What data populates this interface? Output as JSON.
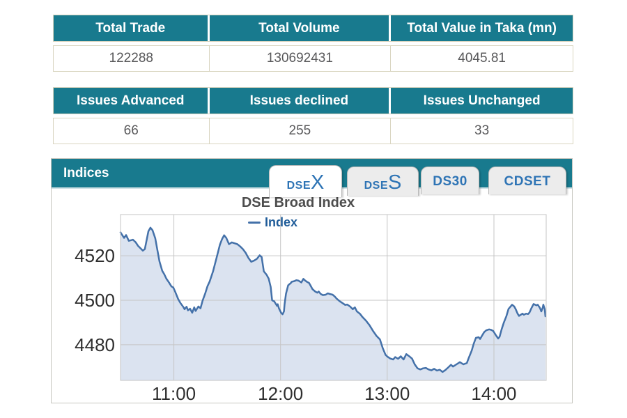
{
  "colors": {
    "teal_header": "#187A8E",
    "tab_text_blue": "#2E74B5",
    "table_border_beige": "#D9D5C0",
    "value_text": "#58585A",
    "series_line": "#4471A9",
    "series_fill": "#DBE3F0",
    "gridline": "#C5C5C5",
    "axis_label": "#2E2E2E",
    "chart_title_gray": "#4D4D4D",
    "legend_text": "#1F5C99"
  },
  "summary_table": {
    "headers": [
      "Total Trade",
      "Total Volume",
      "Total Value in Taka (mn)"
    ],
    "values": [
      "122288",
      "130692431",
      "4045.81"
    ]
  },
  "issues_table": {
    "headers": [
      "Issues Advanced",
      "Issues declined",
      "Issues Unchanged"
    ],
    "values": [
      "66",
      "255",
      "33"
    ]
  },
  "indices_panel": {
    "title": "Indices",
    "tabs": [
      {
        "label": "DSEX",
        "prefix": "DSE",
        "suffix": "X",
        "active": true
      },
      {
        "label": "DSES",
        "prefix": "DSE",
        "suffix": "S",
        "active": false
      },
      {
        "label": "DS30",
        "prefix": "DS30",
        "suffix": "",
        "active": false
      },
      {
        "label": "CDSET",
        "prefix": "CDSET",
        "suffix": "",
        "active": false
      }
    ]
  },
  "chart_data": {
    "type": "area",
    "title": "DSE Broad Index",
    "xlabel": "",
    "ylabel": "",
    "legend_position": "top-center",
    "grid": true,
    "xlim": [
      10.5,
      14.49
    ],
    "ylim": [
      4464,
      4538.5
    ],
    "xticks": [
      {
        "value": 11,
        "label": "11:00"
      },
      {
        "value": 12,
        "label": "12:00"
      },
      {
        "value": 13,
        "label": "13:00"
      },
      {
        "value": 14,
        "label": "14:00"
      }
    ],
    "yticks": [
      {
        "value": 4480,
        "label": "4480"
      },
      {
        "value": 4500,
        "label": "4500"
      },
      {
        "value": 4520,
        "label": "4520"
      }
    ],
    "series": [
      {
        "name": "Index",
        "color": "#4471A9",
        "fill": "#DBE3F0",
        "points": [
          [
            10.5,
            4530.5
          ],
          [
            10.533,
            4528.0
          ],
          [
            10.552,
            4529.3
          ],
          [
            10.578,
            4526.7
          ],
          [
            10.617,
            4527.2
          ],
          [
            10.643,
            4526.0
          ],
          [
            10.663,
            4524.5
          ],
          [
            10.689,
            4523.3
          ],
          [
            10.709,
            4522.3
          ],
          [
            10.728,
            4523.0
          ],
          [
            10.761,
            4531.0
          ],
          [
            10.78,
            4532.6
          ],
          [
            10.8,
            4531.5
          ],
          [
            10.826,
            4527.8
          ],
          [
            10.846,
            4522.4
          ],
          [
            10.865,
            4517.5
          ],
          [
            10.891,
            4513.2
          ],
          [
            10.911,
            4511.6
          ],
          [
            10.93,
            4509.7
          ],
          [
            10.956,
            4507.9
          ],
          [
            10.976,
            4506.3
          ],
          [
            10.995,
            4505.7
          ],
          [
            11.015,
            4503.5
          ],
          [
            11.041,
            4500.5
          ],
          [
            11.061,
            4498.8
          ],
          [
            11.087,
            4497.1
          ],
          [
            11.1,
            4496.0
          ],
          [
            11.119,
            4497.1
          ],
          [
            11.132,
            4495.5
          ],
          [
            11.152,
            4496.2
          ],
          [
            11.172,
            4494.4
          ],
          [
            11.191,
            4496.8
          ],
          [
            11.204,
            4495.2
          ],
          [
            11.23,
            4497.2
          ],
          [
            11.25,
            4496.4
          ],
          [
            11.269,
            4499.8
          ],
          [
            11.295,
            4503.2
          ],
          [
            11.315,
            4506.3
          ],
          [
            11.335,
            4508.4
          ],
          [
            11.367,
            4513.0
          ],
          [
            11.4,
            4519.0
          ],
          [
            11.432,
            4525.0
          ],
          [
            11.452,
            4527.5
          ],
          [
            11.471,
            4529.2
          ],
          [
            11.491,
            4528.0
          ],
          [
            11.517,
            4525.2
          ],
          [
            11.543,
            4526.0
          ],
          [
            11.569,
            4525.6
          ],
          [
            11.595,
            4525.2
          ],
          [
            11.621,
            4524.2
          ],
          [
            11.647,
            4523.0
          ],
          [
            11.673,
            4521.3
          ],
          [
            11.699,
            4519.0
          ],
          [
            11.725,
            4517.3
          ],
          [
            11.752,
            4517.8
          ],
          [
            11.778,
            4518.6
          ],
          [
            11.804,
            4520.2
          ],
          [
            11.823,
            4519.4
          ],
          [
            11.843,
            4513.0
          ],
          [
            11.869,
            4511.5
          ],
          [
            11.889,
            4509.7
          ],
          [
            11.908,
            4505.9
          ],
          [
            11.921,
            4500.0
          ],
          [
            11.941,
            4499.5
          ],
          [
            11.967,
            4497.5
          ],
          [
            11.973,
            4498.2
          ],
          [
            11.986,
            4496.2
          ],
          [
            12.006,
            4494.3
          ],
          [
            12.019,
            4493.7
          ],
          [
            12.032,
            4495.0
          ],
          [
            12.038,
            4498.2
          ],
          [
            12.051,
            4502.9
          ],
          [
            12.071,
            4506.7
          ],
          [
            12.097,
            4507.8
          ],
          [
            12.104,
            4508.3
          ],
          [
            12.13,
            4508.6
          ],
          [
            12.149,
            4509.0
          ],
          [
            12.169,
            4508.8
          ],
          [
            12.195,
            4508.0
          ],
          [
            12.214,
            4509.6
          ],
          [
            12.227,
            4509.0
          ],
          [
            12.247,
            4508.3
          ],
          [
            12.267,
            4507.8
          ],
          [
            12.28,
            4506.7
          ],
          [
            12.299,
            4505.0
          ],
          [
            12.325,
            4503.9
          ],
          [
            12.345,
            4503.4
          ],
          [
            12.358,
            4503.9
          ],
          [
            12.377,
            4502.8
          ],
          [
            12.397,
            4502.3
          ],
          [
            12.423,
            4502.5
          ],
          [
            12.443,
            4503.1
          ],
          [
            12.462,
            4502.8
          ],
          [
            12.488,
            4502.5
          ],
          [
            12.508,
            4501.7
          ],
          [
            12.527,
            4500.7
          ],
          [
            12.554,
            4499.6
          ],
          [
            12.573,
            4499.0
          ],
          [
            12.606,
            4497.9
          ],
          [
            12.625,
            4498.1
          ],
          [
            12.651,
            4497.2
          ],
          [
            12.677,
            4496.0
          ],
          [
            12.697,
            4496.8
          ],
          [
            12.716,
            4495.0
          ],
          [
            12.743,
            4494.0
          ],
          [
            12.769,
            4492.4
          ],
          [
            12.801,
            4490.8
          ],
          [
            12.834,
            4488.8
          ],
          [
            12.866,
            4486.3
          ],
          [
            12.899,
            4484.0
          ],
          [
            12.932,
            4482.4
          ],
          [
            12.958,
            4478.5
          ],
          [
            12.984,
            4475.5
          ],
          [
            13.003,
            4474.6
          ],
          [
            13.029,
            4473.8
          ],
          [
            13.056,
            4473.4
          ],
          [
            13.075,
            4474.5
          ],
          [
            13.101,
            4473.7
          ],
          [
            13.127,
            4474.8
          ],
          [
            13.153,
            4473.4
          ],
          [
            13.179,
            4475.8
          ],
          [
            13.205,
            4474.9
          ],
          [
            13.232,
            4473.8
          ],
          [
            13.258,
            4471.2
          ],
          [
            13.284,
            4469.4
          ],
          [
            13.31,
            4468.9
          ],
          [
            13.336,
            4469.4
          ],
          [
            13.362,
            4469.6
          ],
          [
            13.388,
            4468.9
          ],
          [
            13.414,
            4468.5
          ],
          [
            13.44,
            4469.2
          ],
          [
            13.466,
            4468.4
          ],
          [
            13.492,
            4468.8
          ],
          [
            13.518,
            4467.8
          ],
          [
            13.544,
            4468.6
          ],
          [
            13.571,
            4469.8
          ],
          [
            13.597,
            4471.0
          ],
          [
            13.616,
            4470.2
          ],
          [
            13.649,
            4471.2
          ],
          [
            13.681,
            4472.2
          ],
          [
            13.714,
            4471.2
          ],
          [
            13.746,
            4471.8
          ],
          [
            13.766,
            4474.3
          ],
          [
            13.792,
            4477.4
          ],
          [
            13.811,
            4480.5
          ],
          [
            13.831,
            4483.1
          ],
          [
            13.857,
            4483.4
          ],
          [
            13.87,
            4482.6
          ],
          [
            13.89,
            4484.2
          ],
          [
            13.909,
            4485.7
          ],
          [
            13.929,
            4486.5
          ],
          [
            13.955,
            4486.9
          ],
          [
            13.974,
            4486.7
          ],
          [
            13.994,
            4486.2
          ],
          [
            14.02,
            4484.2
          ],
          [
            14.04,
            4482.8
          ],
          [
            14.053,
            4483.6
          ],
          [
            14.072,
            4486.9
          ],
          [
            14.092,
            4489.9
          ],
          [
            14.118,
            4493.0
          ],
          [
            14.137,
            4496.1
          ],
          [
            14.17,
            4498.0
          ],
          [
            14.19,
            4497.2
          ],
          [
            14.203,
            4496.1
          ],
          [
            14.222,
            4494.0
          ],
          [
            14.235,
            4493.0
          ],
          [
            14.268,
            4494.0
          ],
          [
            14.281,
            4493.5
          ],
          [
            14.301,
            4494.0
          ],
          [
            14.32,
            4493.8
          ],
          [
            14.333,
            4494.5
          ],
          [
            14.353,
            4496.6
          ],
          [
            14.372,
            4498.3
          ],
          [
            14.398,
            4497.7
          ],
          [
            14.411,
            4498.0
          ],
          [
            14.431,
            4496.6
          ],
          [
            14.444,
            4495.0
          ],
          [
            14.457,
            4496.6
          ],
          [
            14.463,
            4498.0
          ],
          [
            14.476,
            4496.0
          ],
          [
            14.483,
            4492.8
          ]
        ]
      }
    ]
  }
}
